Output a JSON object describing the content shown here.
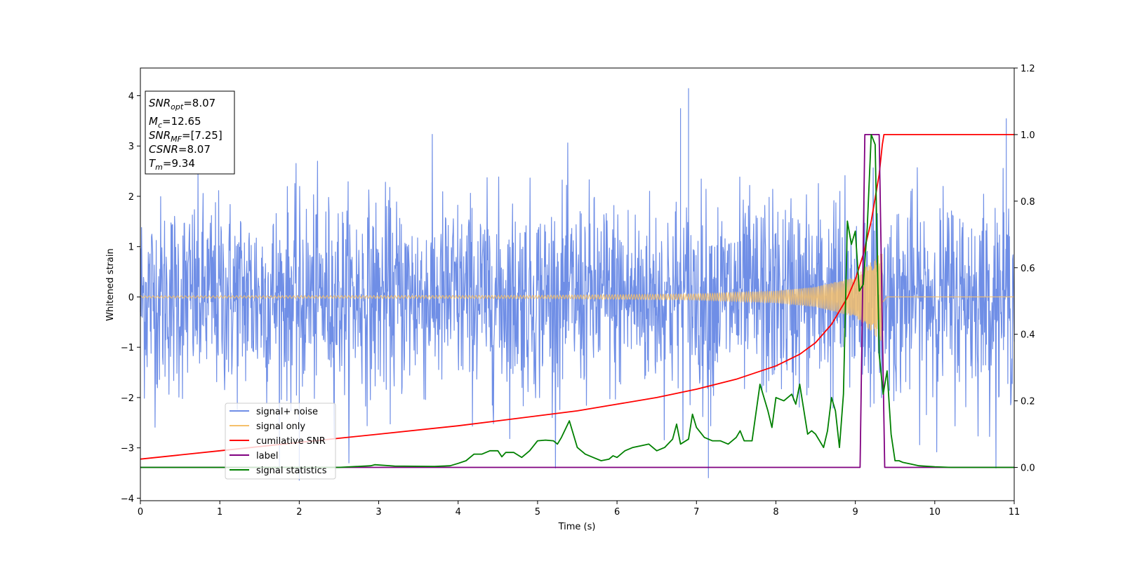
{
  "chart_data": {
    "type": "line",
    "xlabel": "Time (s)",
    "ylabel": "Whitened strain",
    "xlim": [
      0,
      11
    ],
    "ylim": [
      -4.05,
      4.55
    ],
    "y2lim": [
      -0.1,
      1.2
    ],
    "grid": false,
    "xticks": [
      "0",
      "1",
      "2",
      "3",
      "4",
      "5",
      "6",
      "7",
      "8",
      "9",
      "10",
      "11"
    ],
    "yticks": [
      "−4",
      "−3",
      "−2",
      "−1",
      "0",
      "1",
      "2",
      "3",
      "4"
    ],
    "y2ticks": [
      "0.0",
      "0.2",
      "0.4",
      "0.6",
      "0.8",
      "1.0",
      "1.2"
    ],
    "legend_position": "lower-left",
    "info_box": {
      "position": "upper-left",
      "lines": [
        {
          "base": "SNR",
          "sub": "opt",
          "value": "=8.07"
        },
        {
          "base": "M",
          "sub": "c",
          "value": "=12.65"
        },
        {
          "base": "SNR",
          "sub": "MF",
          "value": "=[7.25]"
        },
        {
          "base": "CSNR",
          "sub": "",
          "value": "=8.07"
        },
        {
          "base": "T",
          "sub": "m",
          "value": "=9.34"
        }
      ]
    },
    "series": [
      {
        "name": "signal+ noise",
        "axis": "left",
        "color": "#6f8ee6",
        "style": "noise",
        "sample_rate_hz": 200,
        "noise_sigma": 1.0,
        "peak_extremes": [
          [
            6.9,
            4.15
          ],
          [
            2.0,
            -3.65
          ],
          [
            7.15,
            -3.6
          ],
          [
            6.8,
            3.75
          ],
          [
            10.9,
            3.55
          ]
        ]
      },
      {
        "name": "signal only",
        "axis": "left",
        "color": "#f5c06b",
        "style": "chirp",
        "merger_time": 9.34,
        "amplitude_envelope": [
          [
            0,
            0.02
          ],
          [
            5,
            0.03
          ],
          [
            7,
            0.06
          ],
          [
            8,
            0.12
          ],
          [
            8.5,
            0.2
          ],
          [
            9,
            0.4
          ],
          [
            9.3,
            0.85
          ],
          [
            9.34,
            0.9
          ],
          [
            9.4,
            0.0
          ],
          [
            11,
            0.0
          ]
        ]
      },
      {
        "name": "cumilative SNR",
        "axis": "right",
        "color": "#ff0000",
        "x": [
          0,
          1,
          2,
          3,
          4,
          4.5,
          5,
          5.5,
          6,
          6.5,
          7,
          7.5,
          8,
          8.3,
          8.5,
          8.7,
          8.9,
          9.0,
          9.1,
          9.2,
          9.3,
          9.34,
          9.36,
          11
        ],
        "y": [
          0.025,
          0.05,
          0.075,
          0.1,
          0.125,
          0.14,
          0.155,
          0.17,
          0.19,
          0.21,
          0.235,
          0.265,
          0.305,
          0.34,
          0.375,
          0.43,
          0.51,
          0.565,
          0.64,
          0.74,
          0.88,
          0.97,
          1.0,
          1.0
        ]
      },
      {
        "name": "label",
        "axis": "right",
        "color": "#800080",
        "x": [
          0,
          9.06,
          9.12,
          9.3,
          9.37,
          11
        ],
        "y": [
          0,
          0,
          1.0,
          1.0,
          0,
          0
        ]
      },
      {
        "name": "signal statistics",
        "axis": "right",
        "color": "#008000",
        "x": [
          0,
          1,
          2,
          2.5,
          2.9,
          2.95,
          3.2,
          3.7,
          3.9,
          4.0,
          4.1,
          4.2,
          4.3,
          4.4,
          4.5,
          4.55,
          4.6,
          4.7,
          4.8,
          4.9,
          5.0,
          5.1,
          5.2,
          5.25,
          5.3,
          5.4,
          5.5,
          5.6,
          5.7,
          5.8,
          5.9,
          5.95,
          6.0,
          6.1,
          6.2,
          6.3,
          6.4,
          6.5,
          6.6,
          6.7,
          6.75,
          6.8,
          6.9,
          6.95,
          7.0,
          7.1,
          7.2,
          7.3,
          7.4,
          7.5,
          7.55,
          7.6,
          7.7,
          7.8,
          7.9,
          7.95,
          8.0,
          8.1,
          8.2,
          8.25,
          8.3,
          8.4,
          8.45,
          8.5,
          8.6,
          8.65,
          8.7,
          8.75,
          8.8,
          8.85,
          8.9,
          8.95,
          9.0,
          9.05,
          9.1,
          9.15,
          9.2,
          9.25,
          9.3,
          9.35,
          9.4,
          9.45,
          9.5,
          9.55,
          9.6,
          9.7,
          9.8,
          10.0,
          10.2,
          10.5,
          11.0
        ],
        "y": [
          0.0,
          0.0,
          0.0,
          0.0,
          0.005,
          0.008,
          0.004,
          0.003,
          0.005,
          0.012,
          0.02,
          0.04,
          0.04,
          0.05,
          0.05,
          0.032,
          0.045,
          0.045,
          0.03,
          0.05,
          0.08,
          0.082,
          0.08,
          0.07,
          0.09,
          0.14,
          0.06,
          0.04,
          0.03,
          0.02,
          0.025,
          0.035,
          0.03,
          0.05,
          0.06,
          0.065,
          0.07,
          0.05,
          0.06,
          0.085,
          0.13,
          0.07,
          0.085,
          0.16,
          0.12,
          0.09,
          0.08,
          0.08,
          0.07,
          0.09,
          0.11,
          0.08,
          0.08,
          0.25,
          0.17,
          0.12,
          0.21,
          0.2,
          0.22,
          0.19,
          0.25,
          0.1,
          0.11,
          0.1,
          0.06,
          0.11,
          0.21,
          0.17,
          0.06,
          0.22,
          0.74,
          0.67,
          0.71,
          0.53,
          0.55,
          0.72,
          1.0,
          0.97,
          0.34,
          0.22,
          0.29,
          0.1,
          0.02,
          0.02,
          0.015,
          0.01,
          0.005,
          0.002,
          0.0,
          0.0,
          0.0
        ]
      }
    ]
  }
}
